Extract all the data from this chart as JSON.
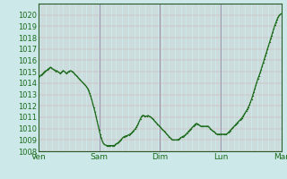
{
  "background_color": "#cce8e8",
  "grid_major_x_color": "#8888aa",
  "grid_minor_x_color": "#ccaaaa",
  "grid_y_color": "#ccaaaa",
  "line_color": "#1a6b1a",
  "ylim": [
    1008,
    1021
  ],
  "yticks": [
    1008,
    1009,
    1010,
    1011,
    1012,
    1013,
    1014,
    1015,
    1016,
    1017,
    1018,
    1019,
    1020
  ],
  "xlabel_ticks": [
    "Ven",
    "Sam",
    "Dim",
    "Lun",
    "Mar"
  ],
  "y_values": [
    1014.5,
    1014.6,
    1014.7,
    1014.75,
    1014.85,
    1014.95,
    1015.05,
    1015.1,
    1015.15,
    1015.25,
    1015.3,
    1015.4,
    1015.35,
    1015.25,
    1015.2,
    1015.15,
    1015.05,
    1015.1,
    1015.0,
    1014.95,
    1014.85,
    1014.9,
    1015.0,
    1015.1,
    1015.05,
    1014.95,
    1014.85,
    1014.9,
    1015.0,
    1015.05,
    1015.1,
    1015.05,
    1015.0,
    1014.9,
    1014.8,
    1014.7,
    1014.6,
    1014.5,
    1014.4,
    1014.3,
    1014.2,
    1014.1,
    1014.0,
    1013.9,
    1013.8,
    1013.7,
    1013.55,
    1013.35,
    1013.1,
    1012.85,
    1012.55,
    1012.2,
    1011.85,
    1011.5,
    1011.1,
    1010.7,
    1010.3,
    1009.9,
    1009.5,
    1009.15,
    1008.9,
    1008.7,
    1008.6,
    1008.55,
    1008.5,
    1008.5,
    1008.5,
    1008.5,
    1008.5,
    1008.5,
    1008.5,
    1008.5,
    1008.55,
    1008.65,
    1008.7,
    1008.75,
    1008.85,
    1008.95,
    1009.05,
    1009.15,
    1009.25,
    1009.3,
    1009.35,
    1009.35,
    1009.4,
    1009.45,
    1009.5,
    1009.55,
    1009.65,
    1009.75,
    1009.85,
    1009.95,
    1010.1,
    1010.25,
    1010.45,
    1010.65,
    1010.85,
    1011.05,
    1011.15,
    1011.15,
    1011.1,
    1011.05,
    1011.1,
    1011.15,
    1011.1,
    1011.05,
    1011.0,
    1010.9,
    1010.8,
    1010.7,
    1010.6,
    1010.5,
    1010.4,
    1010.3,
    1010.2,
    1010.1,
    1010.0,
    1009.9,
    1009.8,
    1009.7,
    1009.6,
    1009.5,
    1009.4,
    1009.3,
    1009.2,
    1009.1,
    1009.0,
    1009.0,
    1009.0,
    1009.0,
    1009.0,
    1009.0,
    1009.05,
    1009.1,
    1009.2,
    1009.25,
    1009.3,
    1009.35,
    1009.4,
    1009.5,
    1009.6,
    1009.7,
    1009.8,
    1009.9,
    1010.0,
    1010.1,
    1010.2,
    1010.3,
    1010.4,
    1010.45,
    1010.4,
    1010.35,
    1010.25,
    1010.2,
    1010.2,
    1010.2,
    1010.2,
    1010.2,
    1010.2,
    1010.2,
    1010.2,
    1010.1,
    1010.0,
    1009.9,
    1009.8,
    1009.75,
    1009.7,
    1009.6,
    1009.5,
    1009.5,
    1009.5,
    1009.5,
    1009.5,
    1009.5,
    1009.5,
    1009.5,
    1009.5,
    1009.5,
    1009.55,
    1009.65,
    1009.75,
    1009.85,
    1009.95,
    1010.05,
    1010.15,
    1010.25,
    1010.35,
    1010.45,
    1010.55,
    1010.65,
    1010.75,
    1010.85,
    1010.95,
    1011.1,
    1011.25,
    1011.4,
    1011.55,
    1011.7,
    1011.9,
    1012.1,
    1012.35,
    1012.6,
    1012.9,
    1013.2,
    1013.5,
    1013.8,
    1014.1,
    1014.4,
    1014.65,
    1014.9,
    1015.2,
    1015.5,
    1015.8,
    1016.1,
    1016.4,
    1016.7,
    1017.0,
    1017.3,
    1017.6,
    1017.9,
    1018.2,
    1018.5,
    1018.8,
    1019.1,
    1019.35,
    1019.6,
    1019.8,
    1019.95,
    1020.05,
    1020.1
  ]
}
